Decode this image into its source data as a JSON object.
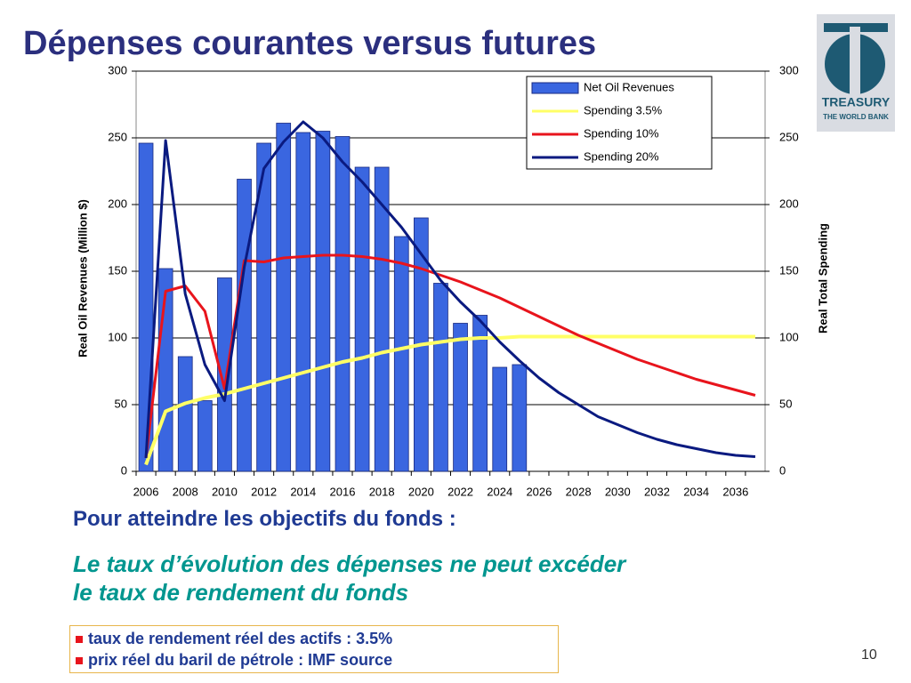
{
  "slide": {
    "title": "Dépenses courantes versus futures",
    "subheading": "Pour atteindre les objectifs du fonds :",
    "statement": [
      "Le taux d’évolution des dépenses ne peut excéder",
      "le taux de rendement du fonds"
    ],
    "bullets": [
      "taux de rendement réel des actifs : 3.5%",
      "prix réel du baril de pétrole : IMF source"
    ],
    "page_number": "10",
    "logo": [
      "TREASURY",
      "THE WORLD BANK"
    ]
  },
  "chart_data": {
    "type": "bar",
    "y_label": "Real Oil Revenues (Million $)",
    "y2_label": "Real Total Spending",
    "categories": [
      "2006",
      null,
      "2008",
      null,
      "2010",
      null,
      "2012",
      null,
      "2014",
      null,
      "2016",
      null,
      "2018",
      null,
      "2020",
      null,
      "2022",
      null,
      "2024",
      null,
      "2026",
      null,
      "2028",
      null,
      "2030",
      null,
      "2032",
      null,
      "2034",
      null,
      "2036",
      null
    ],
    "series": [
      {
        "name": "Net Oil Revenues",
        "type": "bar",
        "color": "#3a66e0",
        "values": [
          246,
          152,
          86,
          53,
          145,
          219,
          246,
          261,
          254,
          255,
          251,
          228,
          228,
          176,
          190,
          141,
          111,
          117,
          78,
          80,
          null,
          null,
          null,
          null,
          null,
          null,
          null,
          null,
          null,
          null,
          null,
          null
        ]
      },
      {
        "name": "Spending 3.5%",
        "type": "line",
        "axis": "y2",
        "color": "#ffff66",
        "values": [
          5,
          45,
          51,
          55,
          58,
          62,
          66,
          70,
          74,
          78,
          82,
          85,
          89,
          92,
          95,
          97,
          99,
          100,
          100,
          101,
          101,
          101,
          101,
          101,
          101,
          101,
          101,
          101,
          101,
          101,
          101,
          101
        ]
      },
      {
        "name": "Spending 10%",
        "type": "line",
        "axis": "y2",
        "color": "#e8141c",
        "values": [
          10,
          135,
          139,
          120,
          62,
          158,
          157,
          160,
          161,
          162,
          162,
          161,
          159,
          156,
          152,
          147,
          142,
          136,
          130,
          123,
          116,
          109,
          102,
          96,
          90,
          84,
          79,
          74,
          69,
          65,
          61,
          57
        ]
      },
      {
        "name": "Spending 20%",
        "type": "line",
        "axis": "y2",
        "color": "#0a1a80",
        "values": [
          10,
          248,
          133,
          80,
          53,
          153,
          227,
          247,
          262,
          250,
          232,
          217,
          200,
          183,
          163,
          143,
          127,
          113,
          97,
          83,
          70,
          59,
          50,
          41,
          35,
          29,
          24,
          20,
          17,
          14,
          12,
          11
        ]
      }
    ],
    "ylim": [
      0,
      300
    ],
    "yticks": [
      0,
      50,
      100,
      150,
      200,
      250,
      300
    ],
    "y2lim": [
      0,
      300
    ],
    "y2ticks": [
      0,
      50,
      100,
      150,
      200,
      250,
      300
    ],
    "grid": true,
    "legend": "upper right"
  }
}
